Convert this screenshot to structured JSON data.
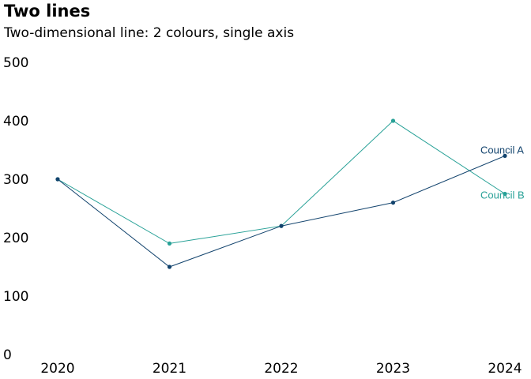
{
  "title": "Two lines",
  "subtitle": "Two-dimensional line: 2 colours, single axis",
  "chart_data": {
    "type": "line",
    "title": "Two lines",
    "subtitle": "Two-dimensional line: 2 colours, single axis",
    "x": [
      "2020",
      "2021",
      "2022",
      "2023",
      "2024"
    ],
    "ylim": [
      0,
      500
    ],
    "yticks": [
      0,
      100,
      200,
      300,
      400,
      500
    ],
    "grid": false,
    "legend": "direct labels at line ends",
    "series": [
      {
        "name": "Council A",
        "color": "#12436d",
        "values": [
          300,
          150,
          220,
          260,
          340
        ]
      },
      {
        "name": "Council B",
        "color": "#28a197",
        "values": [
          300,
          190,
          220,
          400,
          275
        ]
      }
    ]
  }
}
